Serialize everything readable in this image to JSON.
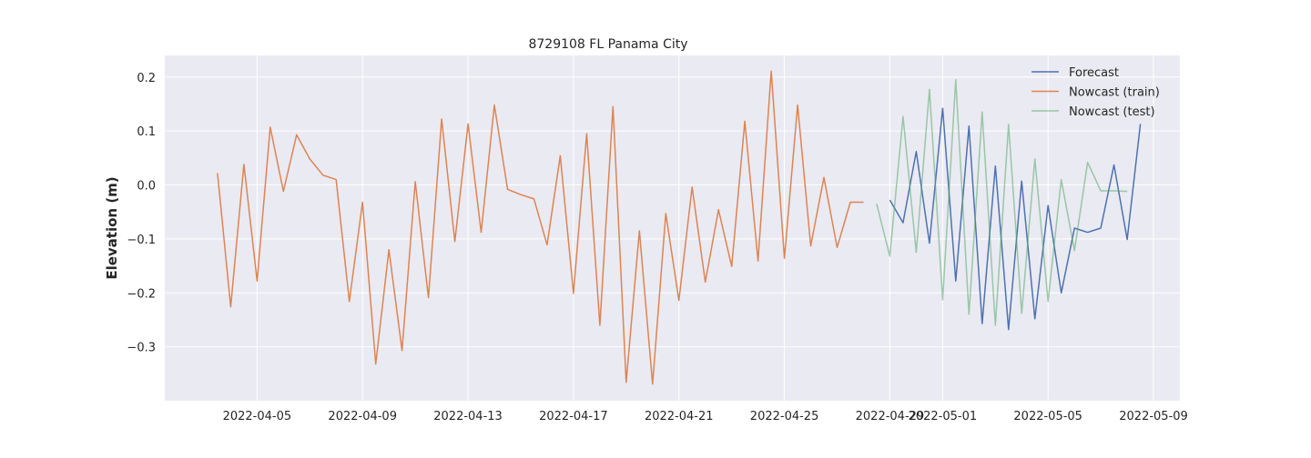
{
  "colors": {
    "plot_bg": "#EAEAF2",
    "grid": "#FFFFFF",
    "forecast": "#4C72B0",
    "nowcast_train": "#DD8452",
    "nowcast_test": "#55A868"
  },
  "chart_data": {
    "type": "line",
    "title": "8729108 FL Panama City",
    "xlabel": "",
    "ylabel": "Elevation (m)",
    "xlim": [
      "2022-04-01T12:00",
      "2022-05-10T00:00"
    ],
    "ylim": [
      -0.4,
      0.24
    ],
    "x_ticks": [
      "2022-04-05",
      "2022-04-09",
      "2022-04-13",
      "2022-04-17",
      "2022-04-21",
      "2022-04-25",
      "2022-04-29",
      "2022-05-01",
      "2022-05-05",
      "2022-05-09"
    ],
    "y_ticks": [
      -0.3,
      -0.2,
      -0.1,
      0.0,
      0.1,
      0.2
    ],
    "y_tick_labels": [
      "−0.3",
      "−0.2",
      "−0.1",
      "0.0",
      "0.1",
      "0.2"
    ],
    "grid": true,
    "legend_position": "top-right",
    "series": [
      {
        "name": "Forecast",
        "color": "#4C72B0",
        "opacity": 1,
        "x": [
          "2022-04-29T00:00",
          "2022-04-29T12:00",
          "2022-04-30T00:00",
          "2022-04-30T12:00",
          "2022-05-01T00:00",
          "2022-05-01T12:00",
          "2022-05-02T00:00",
          "2022-05-02T12:00",
          "2022-05-03T00:00",
          "2022-05-03T12:00",
          "2022-05-04T00:00",
          "2022-05-04T12:00",
          "2022-05-05T00:00",
          "2022-05-05T12:00",
          "2022-05-06T00:00",
          "2022-05-06T12:00",
          "2022-05-07T00:00",
          "2022-05-07T12:00",
          "2022-05-08T00:00",
          "2022-05-08T12:00"
        ],
        "y": [
          -0.028,
          -0.07,
          0.062,
          -0.108,
          0.142,
          -0.178,
          0.109,
          -0.257,
          0.035,
          -0.268,
          0.007,
          -0.248,
          -0.038,
          -0.2,
          -0.08,
          -0.088,
          -0.08,
          0.037,
          -0.101,
          0.113
        ]
      },
      {
        "name": "Nowcast (train)",
        "color": "#DD8452",
        "opacity": 1,
        "x": [
          "2022-04-03T12:00",
          "2022-04-04T00:00",
          "2022-04-04T12:00",
          "2022-04-05T00:00",
          "2022-04-05T12:00",
          "2022-04-06T00:00",
          "2022-04-06T12:00",
          "2022-04-07T00:00",
          "2022-04-07T12:00",
          "2022-04-08T00:00",
          "2022-04-08T12:00",
          "2022-04-09T00:00",
          "2022-04-09T12:00",
          "2022-04-10T00:00",
          "2022-04-10T12:00",
          "2022-04-11T00:00",
          "2022-04-11T12:00",
          "2022-04-12T00:00",
          "2022-04-12T12:00",
          "2022-04-13T00:00",
          "2022-04-13T12:00",
          "2022-04-14T00:00",
          "2022-04-14T12:00",
          "2022-04-15T00:00",
          "2022-04-15T12:00",
          "2022-04-16T00:00",
          "2022-04-16T12:00",
          "2022-04-17T00:00",
          "2022-04-17T12:00",
          "2022-04-18T00:00",
          "2022-04-18T12:00",
          "2022-04-19T00:00",
          "2022-04-19T12:00",
          "2022-04-20T00:00",
          "2022-04-20T12:00",
          "2022-04-21T00:00",
          "2022-04-21T12:00",
          "2022-04-22T00:00",
          "2022-04-22T12:00",
          "2022-04-23T00:00",
          "2022-04-23T12:00",
          "2022-04-24T00:00",
          "2022-04-24T12:00",
          "2022-04-25T00:00",
          "2022-04-25T12:00",
          "2022-04-26T00:00",
          "2022-04-26T12:00",
          "2022-04-27T00:00",
          "2022-04-27T12:00",
          "2022-04-28T00:00"
        ],
        "y": [
          0.022,
          -0.226,
          0.038,
          -0.178,
          0.107,
          -0.012,
          0.093,
          0.048,
          0.018,
          0.01,
          -0.216,
          -0.032,
          -0.332,
          -0.12,
          -0.307,
          0.006,
          -0.209,
          0.122,
          -0.105,
          0.113,
          -0.088,
          0.148,
          -0.008,
          -0.018,
          -0.026,
          -0.111,
          0.054,
          -0.201,
          0.095,
          -0.26,
          0.145,
          -0.366,
          -0.085,
          -0.369,
          -0.053,
          -0.214,
          -0.004,
          -0.18,
          -0.046,
          -0.151,
          0.118,
          -0.141,
          0.211,
          -0.136,
          0.148,
          -0.113,
          0.014,
          -0.116,
          -0.032,
          -0.032
        ]
      },
      {
        "name": "Nowcast (test)",
        "color": "#55A868",
        "opacity": 0.55,
        "x": [
          "2022-04-28T12:00",
          "2022-04-29T00:00",
          "2022-04-29T12:00",
          "2022-04-30T00:00",
          "2022-04-30T12:00",
          "2022-05-01T00:00",
          "2022-05-01T12:00",
          "2022-05-02T00:00",
          "2022-05-02T12:00",
          "2022-05-03T00:00",
          "2022-05-03T12:00",
          "2022-05-04T00:00",
          "2022-05-04T12:00",
          "2022-05-05T00:00",
          "2022-05-05T12:00",
          "2022-05-06T00:00",
          "2022-05-06T12:00",
          "2022-05-07T00:00",
          "2022-05-07T12:00",
          "2022-05-08T00:00"
        ],
        "y": [
          -0.035,
          -0.132,
          0.127,
          -0.125,
          0.177,
          -0.213,
          0.195,
          -0.24,
          0.135,
          -0.26,
          0.112,
          -0.238,
          0.048,
          -0.216,
          0.01,
          -0.122,
          0.042,
          -0.011,
          -0.011,
          -0.012
        ]
      }
    ]
  }
}
